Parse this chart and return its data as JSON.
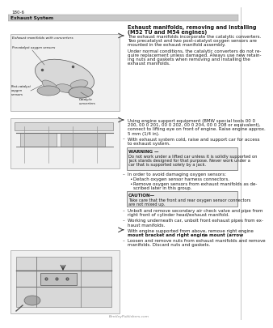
{
  "page_num": "180-6",
  "section_title": "Exhaust System",
  "procedure_title": "Exhaust manifolds, removing and installing\n(M52 TU and M54 engines)",
  "bg_color": "#ffffff",
  "text_color": "#1a1a1a",
  "para1_bullet": true,
  "para1": "The exhaust manifolds incorporate the catalytic converters.\nTwo precatalyst and two post-catalyst oxygen sensors are\nmounted in the exhaust manifold assembly.",
  "para2": "Under normal conditions, the catalytic converters do not re-\nquire replacement unless damaged. Always use new retain-\ning nuts and gaskets when removing and installing the\nexhaust manifolds.",
  "para3_bullet": true,
  "para3": "Using engine support equipment (BMW special tools 00 0\n200, 00 0 201, 00 0 202, 00 0 204, 00 0 208 or equivalent),\nconnect to lifting eye on front of engine. Raise engine approx.\n5 mm (1/4 in).",
  "para4": "With exhaust system cold, raise and support car for access\nto exhaust system.",
  "warning_title": "WARNING —",
  "warning_text": "Do not work under a lifted car unless it is solidly supported on\njack stands designed for that purpose. Never work under a\ncar that is supported solely by a jack.",
  "para5": "In order to avoid damaging oxygen sensors:",
  "bullet1": "Detach oxygen sensor harness connectors.",
  "bullet2": "Remove oxygen sensors from exhaust manifolds as de-\nscribed later in this group.",
  "caution_title": "CAUTION—",
  "caution_text": "Take care that the front and rear oxygen sensor connectors\nare not mixed up.",
  "para6": "Unbolt and remove secondary air check valve and pipe from\nright front of cylinder head/exhaust manifold.",
  "para7": "Working underneath car, unbolt front exhaust pipes from ex-\nhaust manifolds.",
  "para8a": "With engine supported from above, remove right engine\nmount bracket and right engine mount (",
  "para8b": "arrow",
  "para8c": ").",
  "para9": "Loosen and remove nuts from exhaust manifolds and remove\nmanifolds. Discard nuts and gaskets.",
  "footer": "BentleyPublishers.com",
  "img1_label": "Exhaust manifolds with converters",
  "img1_sublabels": [
    "Precatalyst oxygen sensors",
    "Post-catalyst\noxygen\nsensors",
    "Catalytic\nconverters"
  ],
  "header_bar_color": "#c8c8c8",
  "warn_box_color": "#e8e8e8",
  "img_box_color": "#e0e0e0",
  "img_bg_color": "#f0f0f0"
}
